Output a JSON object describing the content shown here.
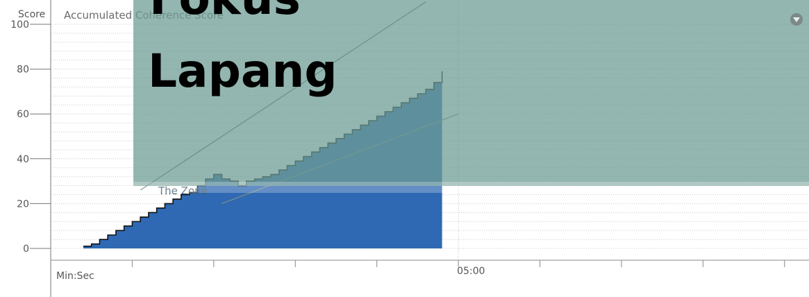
{
  "chart_data": {
    "type": "area",
    "title": "Accumulated Coherence Score",
    "ylabel": "Score",
    "xlabel": "Min:Sec",
    "ylim": [
      0,
      100
    ],
    "yticks": [
      "0",
      "20",
      "40",
      "60",
      "80",
      "100"
    ],
    "xtick_labels": [
      {
        "t": 5,
        "label": "05:00"
      }
    ],
    "xlim": [
      0,
      9.3
    ],
    "zone_label": "The Zone",
    "zone_lines": {
      "upper": [
        [
          1.1,
          26
        ],
        [
          4.6,
          110
        ]
      ],
      "lower": [
        [
          2.1,
          20
        ],
        [
          5.0,
          60
        ]
      ]
    },
    "series": [
      {
        "color": "#2f69b3",
        "x": [
          0.4,
          0.5,
          0.6,
          0.7,
          0.8,
          0.9,
          1.0,
          1.1,
          1.2,
          1.3,
          1.4,
          1.5,
          1.6,
          1.7,
          1.8,
          1.9,
          2.0,
          2.1,
          2.2,
          2.3,
          2.4,
          2.5,
          2.6,
          2.7,
          2.8,
          2.9,
          3.0,
          3.1,
          3.2,
          3.3,
          3.4,
          3.5,
          3.6,
          3.7,
          3.8,
          3.9,
          4.0,
          4.1,
          4.2,
          4.3,
          4.4,
          4.5,
          4.6,
          4.7,
          4.8
        ],
        "y": [
          1,
          2,
          4,
          6,
          8,
          10,
          12,
          14,
          16,
          18,
          20,
          22,
          24,
          25,
          28,
          31,
          33,
          31,
          30,
          28,
          30,
          31,
          32,
          33,
          35,
          37,
          39,
          41,
          43,
          45,
          47,
          49,
          51,
          53,
          55,
          57,
          59,
          61,
          63,
          65,
          67,
          69,
          71,
          74,
          79
        ]
      }
    ]
  },
  "overlay": {
    "lines": [
      "Fokus",
      "Lapang"
    ],
    "color": "#6f9c95"
  },
  "menu_icon": "chevron-down-icon"
}
